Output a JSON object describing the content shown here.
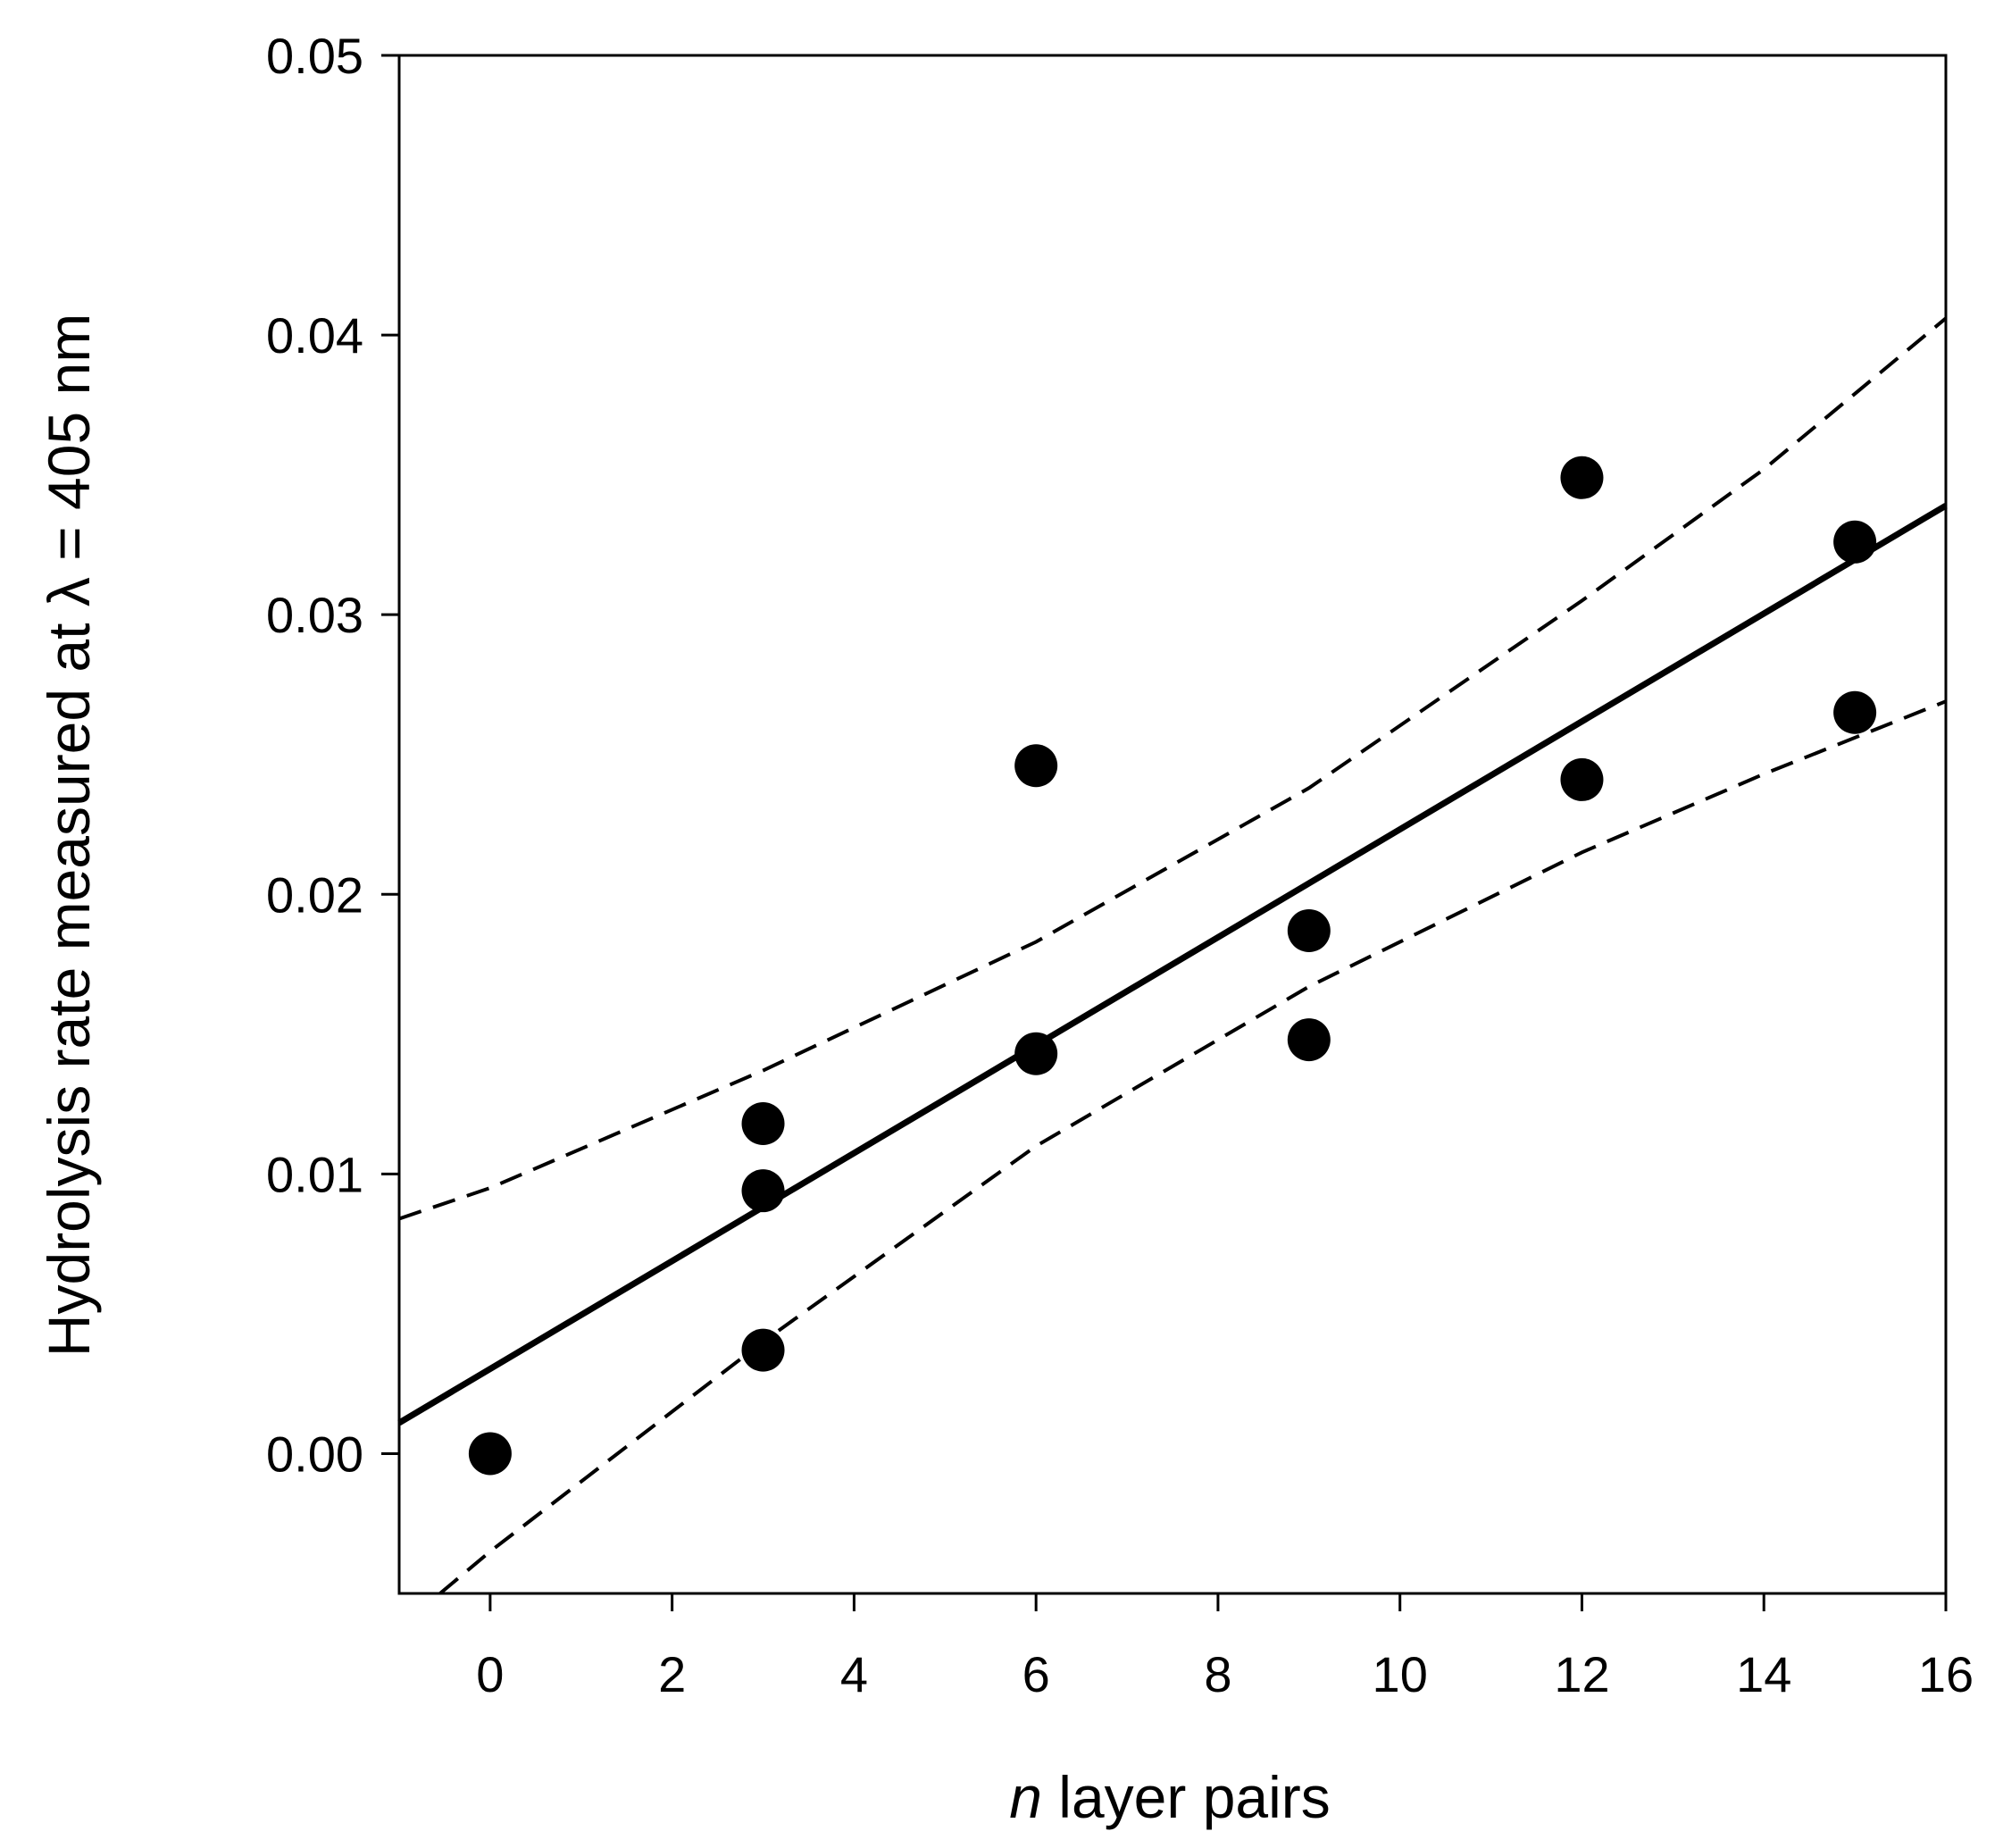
{
  "chart_data": {
    "type": "scatter",
    "title": "",
    "xlabel_italic": "n",
    "xlabel_rest": "layer pairs",
    "ylabel": "Hydrolysis rate measured at λ = 405 nm",
    "xlim": [
      -1,
      16
    ],
    "ylim": [
      -0.005,
      0.05
    ],
    "xticks": [
      0,
      2,
      4,
      6,
      8,
      10,
      12,
      14,
      16
    ],
    "xtick_labels": [
      "0",
      "2",
      "4",
      "6",
      "8",
      "10",
      "12",
      "14",
      "16"
    ],
    "yticks": [
      0.0,
      0.01,
      0.02,
      0.03,
      0.04,
      0.05
    ],
    "ytick_labels": [
      "0.00",
      "0.01",
      "0.02",
      "0.03",
      "0.04",
      "0.05"
    ],
    "points": [
      {
        "x": 0,
        "y": 0.0
      },
      {
        "x": 3,
        "y": 0.0118
      },
      {
        "x": 3,
        "y": 0.0094
      },
      {
        "x": 3,
        "y": 0.0037
      },
      {
        "x": 6,
        "y": 0.0246
      },
      {
        "x": 6,
        "y": 0.0143
      },
      {
        "x": 9,
        "y": 0.0187
      },
      {
        "x": 9,
        "y": 0.0148
      },
      {
        "x": 12,
        "y": 0.0349
      },
      {
        "x": 12,
        "y": 0.0241
      },
      {
        "x": 15,
        "y": 0.0326
      },
      {
        "x": 15,
        "y": 0.0265
      }
    ],
    "regression": {
      "x": [
        -1,
        16
      ],
      "y": [
        0.0011,
        0.0339
      ]
    },
    "upper_ci": {
      "x": [
        -1,
        0,
        3,
        6,
        9,
        12,
        14,
        16
      ],
      "y": [
        0.0084,
        0.0095,
        0.0137,
        0.0183,
        0.0238,
        0.0305,
        0.0352,
        0.0406
      ]
    },
    "lower_ci": {
      "x": [
        -0.55,
        0,
        3,
        6,
        9,
        12,
        14,
        16
      ],
      "y": [
        -0.005,
        -0.0035,
        0.004,
        0.011,
        0.0167,
        0.0215,
        0.0243,
        0.0269
      ]
    }
  }
}
